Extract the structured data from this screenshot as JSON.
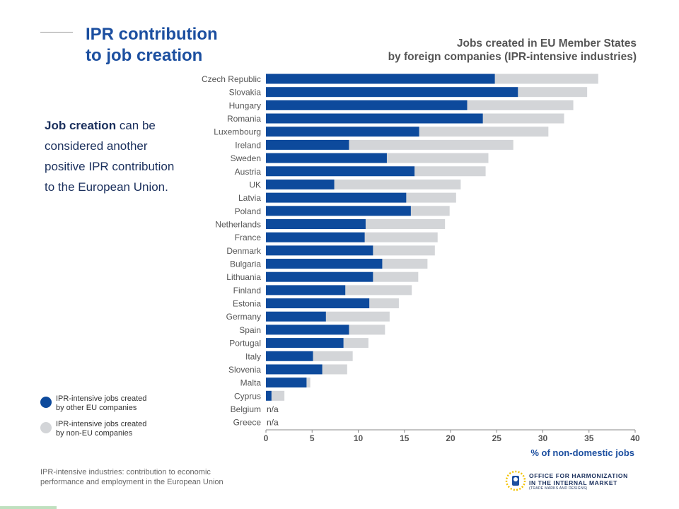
{
  "slide": {
    "title_line1": "IPR contribution",
    "title_line2": "to job creation",
    "body_bold": "Job creation",
    "body_rest": " can be considered another positive IPR contribution to the European Union."
  },
  "legend": {
    "eu_line1": "IPR-intensive jobs created",
    "eu_line2": "by other EU companies",
    "noneu_line1": "IPR-intensive jobs created",
    "noneu_line2": "by non-EU companies"
  },
  "footer": {
    "source_line1": "IPR-intensive industries: contribution to economic",
    "source_line2": "performance and employment in the European Union",
    "logo_line1": "OFFICE FOR HARMONIZATION",
    "logo_line2": "IN THE INTERNAL MARKET",
    "logo_line3": "(TRADE MARKS AND DESIGNS)"
  },
  "colors": {
    "eu": "#0d4a9c",
    "non_eu": "#d3d5d8",
    "title": "#1c4fa0",
    "accent": "#1c4fa0"
  },
  "chart_data": {
    "type": "bar",
    "orientation": "horizontal",
    "stacked": true,
    "title_line1": "Jobs created in EU Member States",
    "title_line2": "by foreign companies (IPR-intensive industries)",
    "xlabel": "% of non-domestic jobs",
    "ylabel": "",
    "xlim": [
      0,
      40
    ],
    "xticks": [
      0,
      5,
      10,
      15,
      20,
      25,
      30,
      35,
      40
    ],
    "grid": false,
    "legend_position": "bottom-left",
    "categories": [
      "Czech Republic",
      "Slovakia",
      "Hungary",
      "Romania",
      "Luxembourg",
      "Ireland",
      "Sweden",
      "Austria",
      "UK",
      "Latvia",
      "Poland",
      "Netherlands",
      "France",
      "Denmark",
      "Bulgaria",
      "Lithuania",
      "Finland",
      "Estonia",
      "Germany",
      "Spain",
      "Portugal",
      "Italy",
      "Slovenia",
      "Malta",
      "Cyprus",
      "Belgium",
      "Greece"
    ],
    "series": [
      {
        "name": "IPR-intensive jobs created by other EU companies",
        "color": "#0d4a9c",
        "values": [
          24.8,
          27.3,
          21.8,
          23.5,
          16.6,
          9.0,
          13.1,
          16.1,
          7.4,
          15.2,
          15.7,
          10.8,
          10.7,
          11.6,
          12.6,
          11.6,
          8.6,
          11.2,
          6.5,
          9.0,
          8.4,
          5.1,
          6.1,
          4.4,
          0.6,
          null,
          null
        ]
      },
      {
        "name": "IPR-intensive jobs created by non-EU companies",
        "color": "#d3d5d8",
        "values": [
          11.2,
          7.5,
          11.5,
          8.8,
          14.0,
          17.8,
          11.0,
          7.7,
          13.7,
          5.4,
          4.2,
          8.6,
          7.9,
          6.7,
          4.9,
          4.9,
          7.2,
          3.2,
          6.9,
          3.9,
          2.7,
          4.3,
          2.7,
          0.4,
          1.4,
          null,
          null
        ]
      }
    ],
    "na_label": "n/a"
  }
}
